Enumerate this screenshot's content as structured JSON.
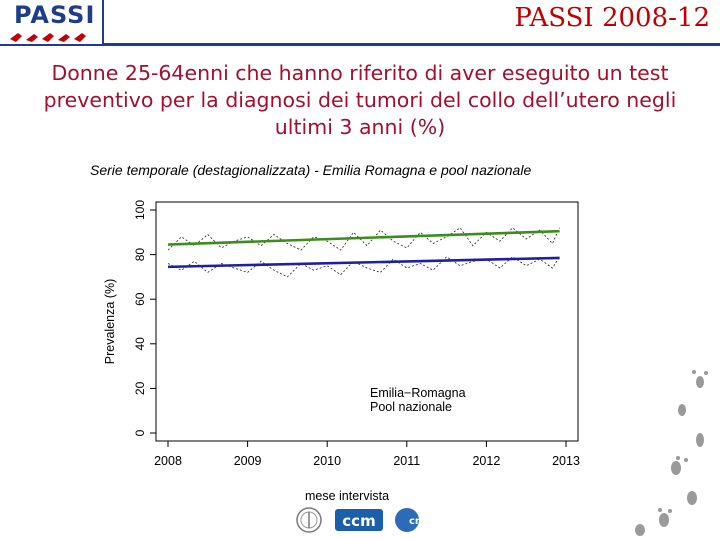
{
  "header": {
    "logo_text": "PASSI",
    "title": "PASSI 2008-12"
  },
  "slide": {
    "title": "Donne 25-64enni che hanno riferito di aver eseguito un test preventivo per la diagnosi dei tumori del collo dell’utero negli ultimi 3 anni (%)",
    "subtitle": "Serie temporale (destagionalizzata) - Emilia Romagna e pool nazionale"
  },
  "footer": {
    "logos": [
      "ccm",
      "cnesps"
    ]
  },
  "colors": {
    "header_title": "#c00000",
    "slide_title": "#a50f2d",
    "series_emilia": "#3c8c1e",
    "series_pool": "#1f1fa0",
    "brand_blue": "#1f3d8a"
  },
  "chart_data": {
    "type": "line",
    "xlabel": "mese intervista",
    "ylabel": "Prevalenza (%)",
    "xlim": [
      2008,
      2013
    ],
    "ylim": [
      0,
      100
    ],
    "x_ticks": [
      2008,
      2009,
      2010,
      2011,
      2012,
      2013
    ],
    "y_ticks": [
      0,
      20,
      40,
      60,
      80,
      100
    ],
    "grid": false,
    "legend_position": "bottom-right",
    "series": [
      {
        "name": "Emilia−Romagna",
        "trend": {
          "x": [
            2008.0,
            2012.92
          ],
          "y": [
            84.5,
            90.5
          ]
        },
        "values": {
          "x": [
            2008.0,
            2008.17,
            2008.33,
            2008.5,
            2008.67,
            2008.83,
            2009.0,
            2009.17,
            2009.33,
            2009.5,
            2009.67,
            2009.83,
            2010.0,
            2010.17,
            2010.33,
            2010.5,
            2010.67,
            2010.83,
            2011.0,
            2011.17,
            2011.33,
            2011.5,
            2011.67,
            2011.83,
            2012.0,
            2012.17,
            2012.33,
            2012.5,
            2012.67,
            2012.83,
            2012.92
          ],
          "y": [
            82,
            88,
            84,
            89,
            83,
            86,
            88,
            84,
            89,
            85,
            82,
            88,
            86,
            82,
            90,
            84,
            91,
            86,
            83,
            90,
            85,
            88,
            92,
            84,
            90,
            86,
            92,
            87,
            91,
            85,
            92
          ]
        }
      },
      {
        "name": "Pool nazionale",
        "trend": {
          "x": [
            2008.0,
            2012.92
          ],
          "y": [
            74.5,
            78.5
          ]
        },
        "values": {
          "x": [
            2008.0,
            2008.17,
            2008.33,
            2008.5,
            2008.67,
            2008.83,
            2009.0,
            2009.17,
            2009.33,
            2009.5,
            2009.67,
            2009.83,
            2010.0,
            2010.17,
            2010.33,
            2010.5,
            2010.67,
            2010.83,
            2011.0,
            2011.17,
            2011.33,
            2011.5,
            2011.67,
            2011.83,
            2012.0,
            2012.17,
            2012.33,
            2012.5,
            2012.67,
            2012.83,
            2012.92
          ],
          "y": [
            76,
            73,
            77,
            72,
            76,
            74,
            72,
            77,
            73,
            70,
            76,
            73,
            75,
            71,
            77,
            74,
            72,
            78,
            74,
            76,
            73,
            79,
            75,
            77,
            78,
            74,
            79,
            75,
            78,
            74,
            79
          ]
        }
      }
    ]
  }
}
